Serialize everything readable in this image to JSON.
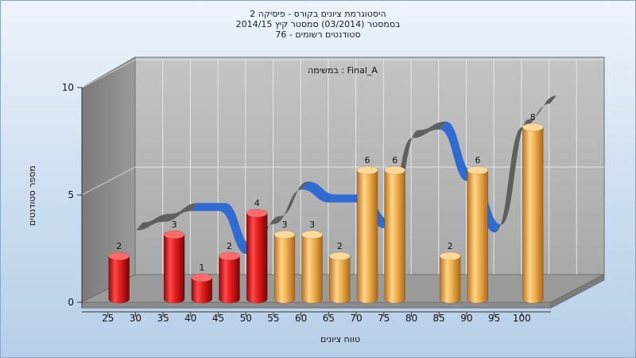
{
  "chart_data": {
    "type": "bar",
    "title_lines": [
      "היסטוגרמת ציונים בקורס - פיסיקה 2",
      "בסמסטר  (03/2014)  סמסטר קיץ 2014/15",
      "סטודנטים רשומים - 76"
    ],
    "task_label": "במשימה : Final_A",
    "xlabel": "טווח ציונים",
    "ylabel": "מספר סטודנטים",
    "ylim": [
      0,
      10
    ],
    "y_ticks": [
      0,
      5,
      10
    ],
    "x_ticks": [
      25,
      30,
      35,
      40,
      45,
      50,
      55,
      60,
      65,
      70,
      75,
      80,
      85,
      90,
      95,
      100
    ],
    "categories": [
      25,
      30,
      35,
      40,
      45,
      50,
      55,
      60,
      65,
      70,
      75,
      80,
      85,
      90,
      95,
      100
    ],
    "values": [
      2,
      0,
      3,
      1,
      2,
      4,
      3,
      3,
      2,
      6,
      6,
      0,
      2,
      6,
      0,
      8
    ],
    "bar_colors": [
      "red",
      "",
      "red",
      "red",
      "red",
      "red",
      "orange",
      "orange",
      "orange",
      "orange",
      "orange",
      "",
      "orange",
      "orange",
      "",
      "orange"
    ],
    "trend_line": {
      "x": [
        25,
        30,
        35,
        40,
        45,
        50,
        55,
        60,
        65,
        70,
        75,
        80,
        85,
        90,
        95,
        100
      ],
      "y": [
        2.7,
        3.1,
        3.6,
        3.6,
        1.6,
        3.0,
        4.6,
        4.0,
        4.0,
        2.8,
        7.0,
        7.4,
        5.0,
        2.6,
        7.5,
        8.6
      ]
    },
    "grid": true,
    "colors": {
      "red": "#e41e1e",
      "orange": "#f0ae4a",
      "trend_front": "#2f6bd0",
      "trend_back": "#5f5f5f",
      "back_wall": "#b7b7b7",
      "side_wall": "#8a8a8a",
      "floor": "#9a9a9a"
    }
  }
}
